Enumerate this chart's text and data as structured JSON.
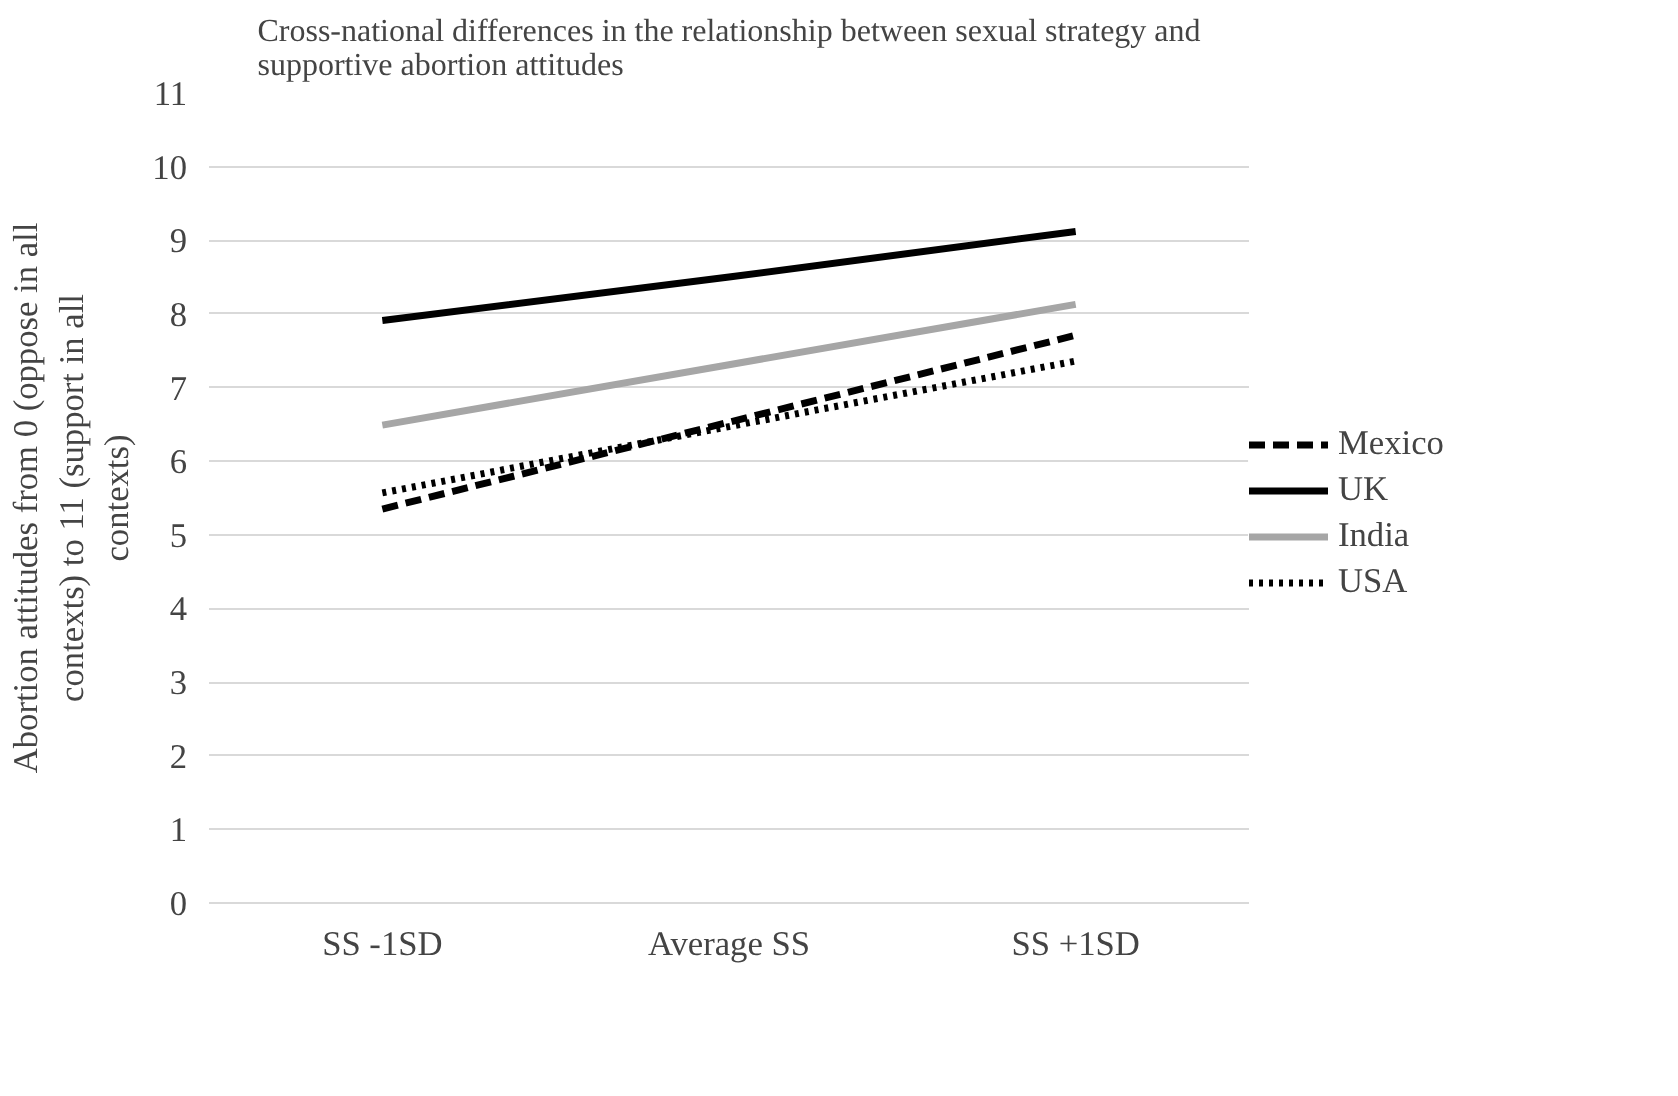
{
  "chart_data": {
    "type": "line",
    "title": "Cross-national differences in the relationship between sexual strategy and supportive abortion attitudes",
    "ylabel": "Abortion attitudes from 0 (oppose in all contexts) to 11 (support in all contexts)",
    "categories": [
      "SS -1SD",
      "Average SS",
      "SS +1SD"
    ],
    "series": [
      {
        "name": "Mexico",
        "color": "#000000",
        "line_style": "dashed",
        "values": [
          5.35,
          6.53,
          7.71
        ]
      },
      {
        "name": "UK",
        "color": "#000000",
        "line_style": "solid",
        "values": [
          7.91,
          8.5,
          9.12
        ]
      },
      {
        "name": "India",
        "color": "#a6a6a6",
        "line_style": "solid",
        "values": [
          6.49,
          7.31,
          8.13
        ]
      },
      {
        "name": "USA",
        "color": "#000000",
        "line_style": "dotted",
        "values": [
          5.57,
          6.47,
          7.36
        ]
      }
    ],
    "ylim": [
      0,
      11
    ],
    "yticks": [
      0,
      1,
      2,
      3,
      4,
      5,
      6,
      7,
      8,
      9,
      10,
      11
    ],
    "grid": "y",
    "legend": "right",
    "marker": "none"
  }
}
